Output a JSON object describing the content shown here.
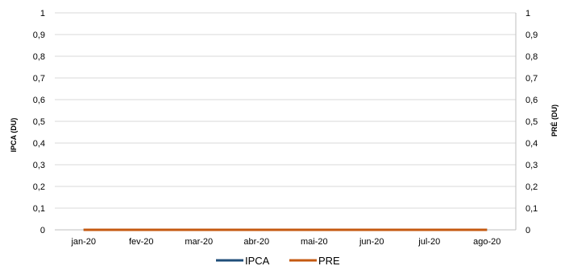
{
  "chart_data": {
    "type": "line",
    "categories": [
      "jan-20",
      "fev-20",
      "mar-20",
      "abr-20",
      "mai-20",
      "jun-20",
      "jul-20",
      "ago-20"
    ],
    "series": [
      {
        "name": "IPCA",
        "axis": "left",
        "color": "#1F4E79",
        "values": [
          0,
          0,
          0,
          0,
          0,
          0,
          0,
          0
        ]
      },
      {
        "name": "PRE",
        "axis": "right",
        "color": "#C55A11",
        "values": [
          0,
          0,
          0,
          0,
          0,
          0,
          0,
          0
        ]
      }
    ],
    "ylabel_left": "IPCA (DU)",
    "ylabel_right": "PRÉ (DU)",
    "ylim_left": [
      0,
      1
    ],
    "ylim_right": [
      0,
      1
    ],
    "y_ticks": [
      "0",
      "0,1",
      "0,2",
      "0,3",
      "0,4",
      "0,5",
      "0,6",
      "0,7",
      "0,8",
      "0,9",
      "1"
    ],
    "grid": true,
    "legend_position": "bottom"
  }
}
